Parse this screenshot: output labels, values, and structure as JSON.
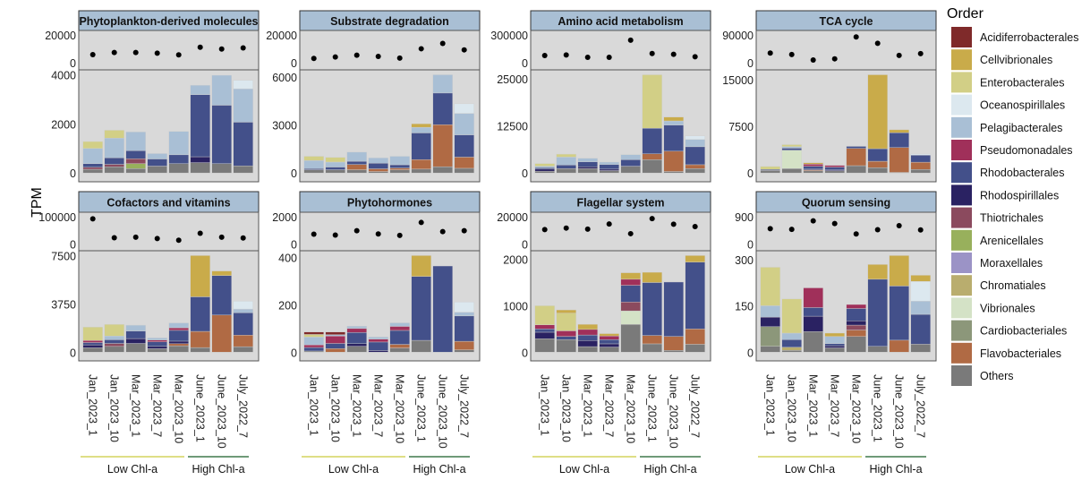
{
  "chart_data": {
    "type": "bar",
    "layout": "faceted stacked bar with dot strip above each facet",
    "ylabel": "TPM",
    "samples": [
      "Jan_2023_1",
      "Jan_2023_10",
      "Mar_2023_1",
      "Mar_2023_7",
      "Mar_2023_10",
      "June_2023_1",
      "June_2023_10",
      "July_2022_7"
    ],
    "groups": [
      {
        "label": "Low Chl-a",
        "count": 5,
        "color": "#dede86"
      },
      {
        "label": "High Chl-a",
        "count": 3,
        "color": "#6f9a78"
      }
    ],
    "legend": {
      "title": "Order",
      "placement": "right",
      "items": [
        {
          "name": "Acidiferrobacterales",
          "color": "#7f2a2a"
        },
        {
          "name": "Cellvibrionales",
          "color": "#c9ab4a"
        },
        {
          "name": "Enterobacterales",
          "color": "#d2cf86"
        },
        {
          "name": "Oceanospirillales",
          "color": "#dce8ef"
        },
        {
          "name": "Pelagibacterales",
          "color": "#a9bfd5"
        },
        {
          "name": "Pseudomonadales",
          "color": "#a0305a"
        },
        {
          "name": "Rhodobacterales",
          "color": "#43508a"
        },
        {
          "name": "Rhodospirillales",
          "color": "#2a2262"
        },
        {
          "name": "Thiotrichales",
          "color": "#8b4a5e"
        },
        {
          "name": "Arenicellales",
          "color": "#98b05c"
        },
        {
          "name": "Moraxellales",
          "color": "#9b93c6"
        },
        {
          "name": "Chromatiales",
          "color": "#b9ad6e"
        },
        {
          "name": "Vibrionales",
          "color": "#d4e2c6"
        },
        {
          "name": "Cardiobacteriales",
          "color": "#8c977a"
        },
        {
          "name": "Flavobacteriales",
          "color": "#b06a44"
        },
        {
          "name": "Others",
          "color": "#7a7a7a"
        }
      ]
    },
    "style": {
      "panel_bg": "#d9d9d9",
      "strip_bg": "#a9bfd4",
      "dot_color": "#000000"
    },
    "panels": [
      {
        "title": "Phytoplankton-derived molecules",
        "top_ticks": [
          0,
          20000
        ],
        "dots": [
          5900,
          7400,
          7400,
          6900,
          5700,
          11200,
          9900,
          10700
        ],
        "bottom_ticks": [
          0,
          2000,
          4000
        ],
        "bars": [
          {
            "Others": 150,
            "Thiotrichales": 80,
            "Rhodobacterales": 150,
            "Pelagibacterales": 620,
            "Enterobacterales": 280
          },
          {
            "Others": 250,
            "Thiotrichales": 100,
            "Rhodobacterales": 270,
            "Pelagibacterales": 800,
            "Enterobacterales": 320
          },
          {
            "Others": 180,
            "Arenicellales": 200,
            "Thiotrichales": 200,
            "Rhodobacterales": 330,
            "Pelagibacterales": 760
          },
          {
            "Others": 280,
            "Rhodobacterales": 290,
            "Pelagibacterales": 220
          },
          {
            "Others": 380,
            "Rhodobacterales": 360,
            "Pelagibacterales": 950
          },
          {
            "Others": 420,
            "Rhodospirillales": 240,
            "Rhodobacterales": 2530,
            "Pelagibacterales": 380
          },
          {
            "Others": 380,
            "Rhodobacterales": 2380,
            "Pelagibacterales": 1220
          },
          {
            "Others": 290,
            "Rhodobacterales": 1780,
            "Pelagibacterales": 1360,
            "Oceanospirillales": 340
          }
        ]
      },
      {
        "title": "Substrate degradation",
        "top_ticks": [
          0,
          20000
        ],
        "dots": [
          3200,
          4200,
          5500,
          4600,
          3400,
          10100,
          13900,
          9300
        ],
        "bottom_ticks": [
          0,
          3000,
          6000
        ],
        "bars": [
          {
            "Others": 200,
            "Rhodobacterales": 70,
            "Pelagibacterales": 510,
            "Enterobacterales": 260
          },
          {
            "Others": 200,
            "Rhodobacterales": 170,
            "Pelagibacterales": 310,
            "Enterobacterales": 290
          },
          {
            "Others": 200,
            "Flavobacteriales": 330,
            "Rhodobacterales": 200,
            "Pelagibacterales": 570
          },
          {
            "Others": 90,
            "Flavobacteriales": 170,
            "Rhodobacterales": 350,
            "Pelagibacterales": 330
          },
          {
            "Others": 200,
            "Flavobacteriales": 110,
            "Rhodobacterales": 200,
            "Pelagibacterales": 530
          },
          {
            "Others": 240,
            "Flavobacteriales": 590,
            "Rhodobacterales": 1670,
            "Pelagibacterales": 350,
            "Cellvibrionales": 220
          },
          {
            "Others": 390,
            "Flavobacteriales": 2620,
            "Rhodobacterales": 1980,
            "Pelagibacterales": 1140
          },
          {
            "Others": 290,
            "Flavobacteriales": 700,
            "Rhodobacterales": 1390,
            "Pelagibacterales": 1340,
            "Oceanospirillales": 600
          }
        ]
      },
      {
        "title": "Amino acid metabolism",
        "top_ticks": [
          0,
          300000
        ],
        "dots": [
          79000,
          85000,
          60000,
          60000,
          243000,
          101000,
          92000,
          66000
        ],
        "bottom_ticks": [
          0,
          12500,
          25000
        ],
        "bars": [
          {
            "Others": 470,
            "Rhodospirillales": 550,
            "Rhodobacterales": 390,
            "Pelagibacterales": 390,
            "Enterobacterales": 700
          },
          {
            "Others": 1170,
            "Rhodobacterales": 940,
            "Pelagibacterales": 2110,
            "Enterobacterales": 780
          },
          {
            "Others": 1170,
            "Rhodospirillales": 470,
            "Rhodobacterales": 1330,
            "Pelagibacterales": 940
          },
          {
            "Others": 620,
            "Rhodospirillales": 390,
            "Rhodobacterales": 1250,
            "Pelagibacterales": 620
          },
          {
            "Others": 1800,
            "Rhodobacterales": 1720,
            "Pelagibacterales": 1330
          },
          {
            "Others": 3520,
            "Flavobacteriales": 1560,
            "Rhodobacterales": 6800,
            "Enterobacterales": 14200
          },
          {
            "Others": 390,
            "Flavobacteriales": 5390,
            "Rhodobacterales": 6950,
            "Pelagibacterales": 1090,
            "Cellvibrionales": 1020
          },
          {
            "Others": 1170,
            "Flavobacteriales": 1020,
            "Rhodobacterales": 4770,
            "Pelagibacterales": 1950,
            "Oceanospirillales": 940
          }
        ]
      },
      {
        "title": "TCA cycle",
        "top_ticks": [
          0,
          90000
        ],
        "dots": [
          31500,
          27000,
          9300,
          13000,
          83500,
          63000,
          24000,
          29700
        ],
        "bottom_ticks": [
          0,
          7500,
          15000
        ],
        "bars": [
          {
            "Others": 420,
            "Rhodobacterales": 140,
            "Enterobacterales": 470
          },
          {
            "Others": 700,
            "Vibrionales": 2960,
            "Rhodobacterales": 330,
            "Pelagibacterales": 230,
            "Enterobacterales": 330
          },
          {
            "Others": 330,
            "Flavobacteriales": 140,
            "Rhodospirillales": 140,
            "Rhodobacterales": 470,
            "Pseudomonadales": 330,
            "Cellvibrionales": 230
          },
          {
            "Others": 330,
            "Rhodospirillales": 140,
            "Rhodobacterales": 470,
            "Pseudomonadales": 280
          },
          {
            "Others": 1170,
            "Flavobacteriales": 2770,
            "Rhodobacterales": 330
          },
          {
            "Others": 850,
            "Flavobacteriales": 1030,
            "Rhodobacterales": 2020,
            "Cellvibrionales": 11880
          },
          {
            "Others": 90,
            "Flavobacteriales": 3990,
            "Rhodobacterales": 2390,
            "Cellvibrionales": 470
          },
          {
            "Others": 560,
            "Flavobacteriales": 1170,
            "Rhodobacterales": 1130,
            "Oceanospirillales": 190
          }
        ]
      },
      {
        "title": "Cofactors and vitamins",
        "top_ticks": [
          0,
          100000
        ],
        "dots": [
          91800,
          22700,
          24700,
          19600,
          13400,
          39000,
          24700,
          21600
        ],
        "bottom_ticks": [
          0,
          3750,
          7500
        ],
        "bars": [
          {
            "Others": 340,
            "Rhodospirillales": 230,
            "Rhodobacterales": 180,
            "Pseudomonadales": 160,
            "Enterobacterales": 1040
          },
          {
            "Others": 450,
            "Thiotrichales": 230,
            "Rhodobacterales": 290,
            "Pelagibacterales": 290,
            "Enterobacterales": 900
          },
          {
            "Others": 680,
            "Rhodospirillales": 380,
            "Rhodobacterales": 590,
            "Pelagibacterales": 450
          },
          {
            "Others": 270,
            "Rhodospirillales": 180,
            "Rhodobacterales": 360,
            "Pseudomonadales": 140,
            "Pelagibacterales": 160
          },
          {
            "Others": 500,
            "Flavobacteriales": 160,
            "Rhodospirillales": 200,
            "Rhodobacterales": 840,
            "Pseudomonadales": 200,
            "Pelagibacterales": 380
          },
          {
            "Others": 360,
            "Flavobacteriales": 1260,
            "Rhodobacterales": 2690,
            "Cellvibrionales": 3210
          },
          {
            "Flavobacteriales": 2890,
            "Rhodobacterales": 3070,
            "Cellvibrionales": 360
          },
          {
            "Others": 430,
            "Flavobacteriales": 900,
            "Rhodobacterales": 1740,
            "Pelagibacterales": 290,
            "Oceanospirillales": 610
          }
        ]
      },
      {
        "title": "Phytohormones",
        "top_ticks": [
          0,
          2000
        ],
        "dots": [
          710,
          650,
          970,
          730,
          620,
          1570,
          900,
          970
        ],
        "bottom_ticks": [
          0,
          200,
          400
        ],
        "bars": [
          {
            "Others": 5,
            "Rhodobacterales": 15,
            "Pseudomonadales": 11,
            "Pelagibacterales": 33,
            "Enterobacterales": 11,
            "Acidiferrobacterales": 10
          },
          {
            "Flavobacteriales": 15,
            "Rhodobacterales": 22,
            "Pseudomonadales": 31,
            "Pelagibacterales": 6,
            "Acidiferrobacterales": 11
          },
          {
            "Others": 25,
            "Rhodospirillales": 11,
            "Rhodobacterales": 47,
            "Pseudomonadales": 17,
            "Pelagibacterales": 10
          },
          {
            "Rhodospirillales": 7,
            "Rhodobacterales": 36,
            "Pseudomonadales": 12,
            "Pelagibacterales": 9
          },
          {
            "Others": 18,
            "Flavobacteriales": 15,
            "Rhodobacterales": 59,
            "Pseudomonadales": 17,
            "Pelagibacterales": 15
          },
          {
            "Others": 50,
            "Rhodobacterales": 270,
            "Cellvibrionales": 88
          },
          {
            "Rhodobacterales": 364
          },
          {
            "Others": 10,
            "Flavobacteriales": 36,
            "Rhodobacterales": 107,
            "Pelagibacterales": 16,
            "Oceanospirillales": 43
          }
        ]
      },
      {
        "title": "Flagellar system",
        "top_ticks": [
          0,
          20000
        ],
        "dots": [
          10500,
          11600,
          10800,
          14600,
          7500,
          18500,
          14400,
          12700
        ],
        "bottom_ticks": [
          0,
          1000,
          2000
        ],
        "bars": [
          {
            "Others": 290,
            "Rhodospirillales": 140,
            "Rhodobacterales": 70,
            "Pseudomonadales": 90,
            "Enterobacterales": 410
          },
          {
            "Others": 270,
            "Rhodobacterales": 70,
            "Pseudomonadales": 120,
            "Enterobacterales": 380,
            "Cellvibrionales": 70
          },
          {
            "Others": 120,
            "Rhodospirillales": 130,
            "Rhodobacterales": 120,
            "Pseudomonadales": 120,
            "Cellvibrionales": 110
          },
          {
            "Others": 110,
            "Rhodospirillales": 70,
            "Rhodobacterales": 90,
            "Pseudomonadales": 80,
            "Cellvibrionales": 50
          },
          {
            "Others": 600,
            "Vibrionales": 290,
            "Thiotrichales": 190,
            "Rhodobacterales": 360,
            "Pseudomonadales": 130,
            "Cellvibrionales": 140
          },
          {
            "Others": 180,
            "Flavobacteriales": 180,
            "Rhodobacterales": 1140,
            "Cellvibrionales": 220
          },
          {
            "Others": 40,
            "Flavobacteriales": 300,
            "Rhodobacterales": 1170
          },
          {
            "Others": 170,
            "Flavobacteriales": 330,
            "Rhodobacterales": 1440,
            "Cellvibrionales": 140
          }
        ]
      },
      {
        "title": "Quorum sensing",
        "top_ticks": [
          0,
          900
        ],
        "dots": [
          500,
          480,
          760,
          670,
          330,
          470,
          600,
          460
        ],
        "bottom_ticks": [
          0,
          150,
          300
        ],
        "bars": [
          {
            "Others": 19,
            "Cardiobacteriales": 64,
            "Rhodospirillales": 31,
            "Pelagibacterales": 37,
            "Enterobacterales": 125
          },
          {
            "Others": 6,
            "Chromatiales": 10,
            "Rhodobacterales": 25,
            "Pelagibacterales": 21,
            "Enterobacterales": 111
          },
          {
            "Others": 67,
            "Rhodospirillales": 50,
            "Rhodobacterales": 28,
            "Pseudomonadales": 64
          },
          {
            "Others": 14,
            "Rhodospirillales": 7,
            "Rhodobacterales": 7,
            "Pelagibacterales": 23,
            "Cellvibrionales": 11
          },
          {
            "Others": 51,
            "Flavobacteriales": 21,
            "Thiotrichales": 16,
            "Rhodospirillales": 14,
            "Rhodobacterales": 40,
            "Pseudomonadales": 13
          },
          {
            "Others": 19,
            "Rhodobacterales": 218,
            "Cellvibrionales": 48
          },
          {
            "Flavobacteriales": 39,
            "Rhodobacterales": 176,
            "Cellvibrionales": 99
          },
          {
            "Others": 26,
            "Rhodobacterales": 97,
            "Pelagibacterales": 43,
            "Oceanospirillales": 64,
            "Cellvibrionales": 20
          }
        ]
      }
    ]
  }
}
